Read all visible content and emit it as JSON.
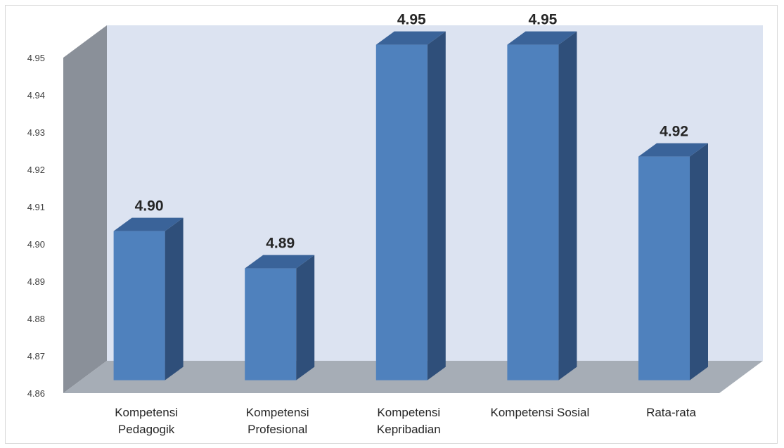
{
  "chart_data": {
    "type": "bar",
    "style": "3d-column",
    "categories": [
      [
        "Kompetensi",
        "Pedagogik"
      ],
      [
        "Kompetensi",
        "Profesional"
      ],
      [
        "Kompetensi",
        "Kepribadian"
      ],
      [
        "Kompetensi Sosial"
      ],
      [
        "Rata-rata"
      ]
    ],
    "values": [
      4.9,
      4.89,
      4.95,
      4.95,
      4.92
    ],
    "data_labels": [
      "4.90",
      "4.89",
      "4.95",
      "4.95",
      "4.92"
    ],
    "ylim": [
      4.86,
      4.95
    ],
    "yticks": [
      "4.86",
      "4.87",
      "4.88",
      "4.89",
      "4.90",
      "4.91",
      "4.92",
      "4.93",
      "4.94",
      "4.95"
    ],
    "title": "",
    "xlabel": "",
    "ylabel": "",
    "grid": false,
    "legend": "none",
    "colors": {
      "bar_front": "#4f81bd",
      "bar_side": "#2f4f7a",
      "bar_top": "#3a6399",
      "back_wall": "#dce3f1",
      "side_wall": "#8a9099",
      "floor": "#a6adb6"
    }
  }
}
